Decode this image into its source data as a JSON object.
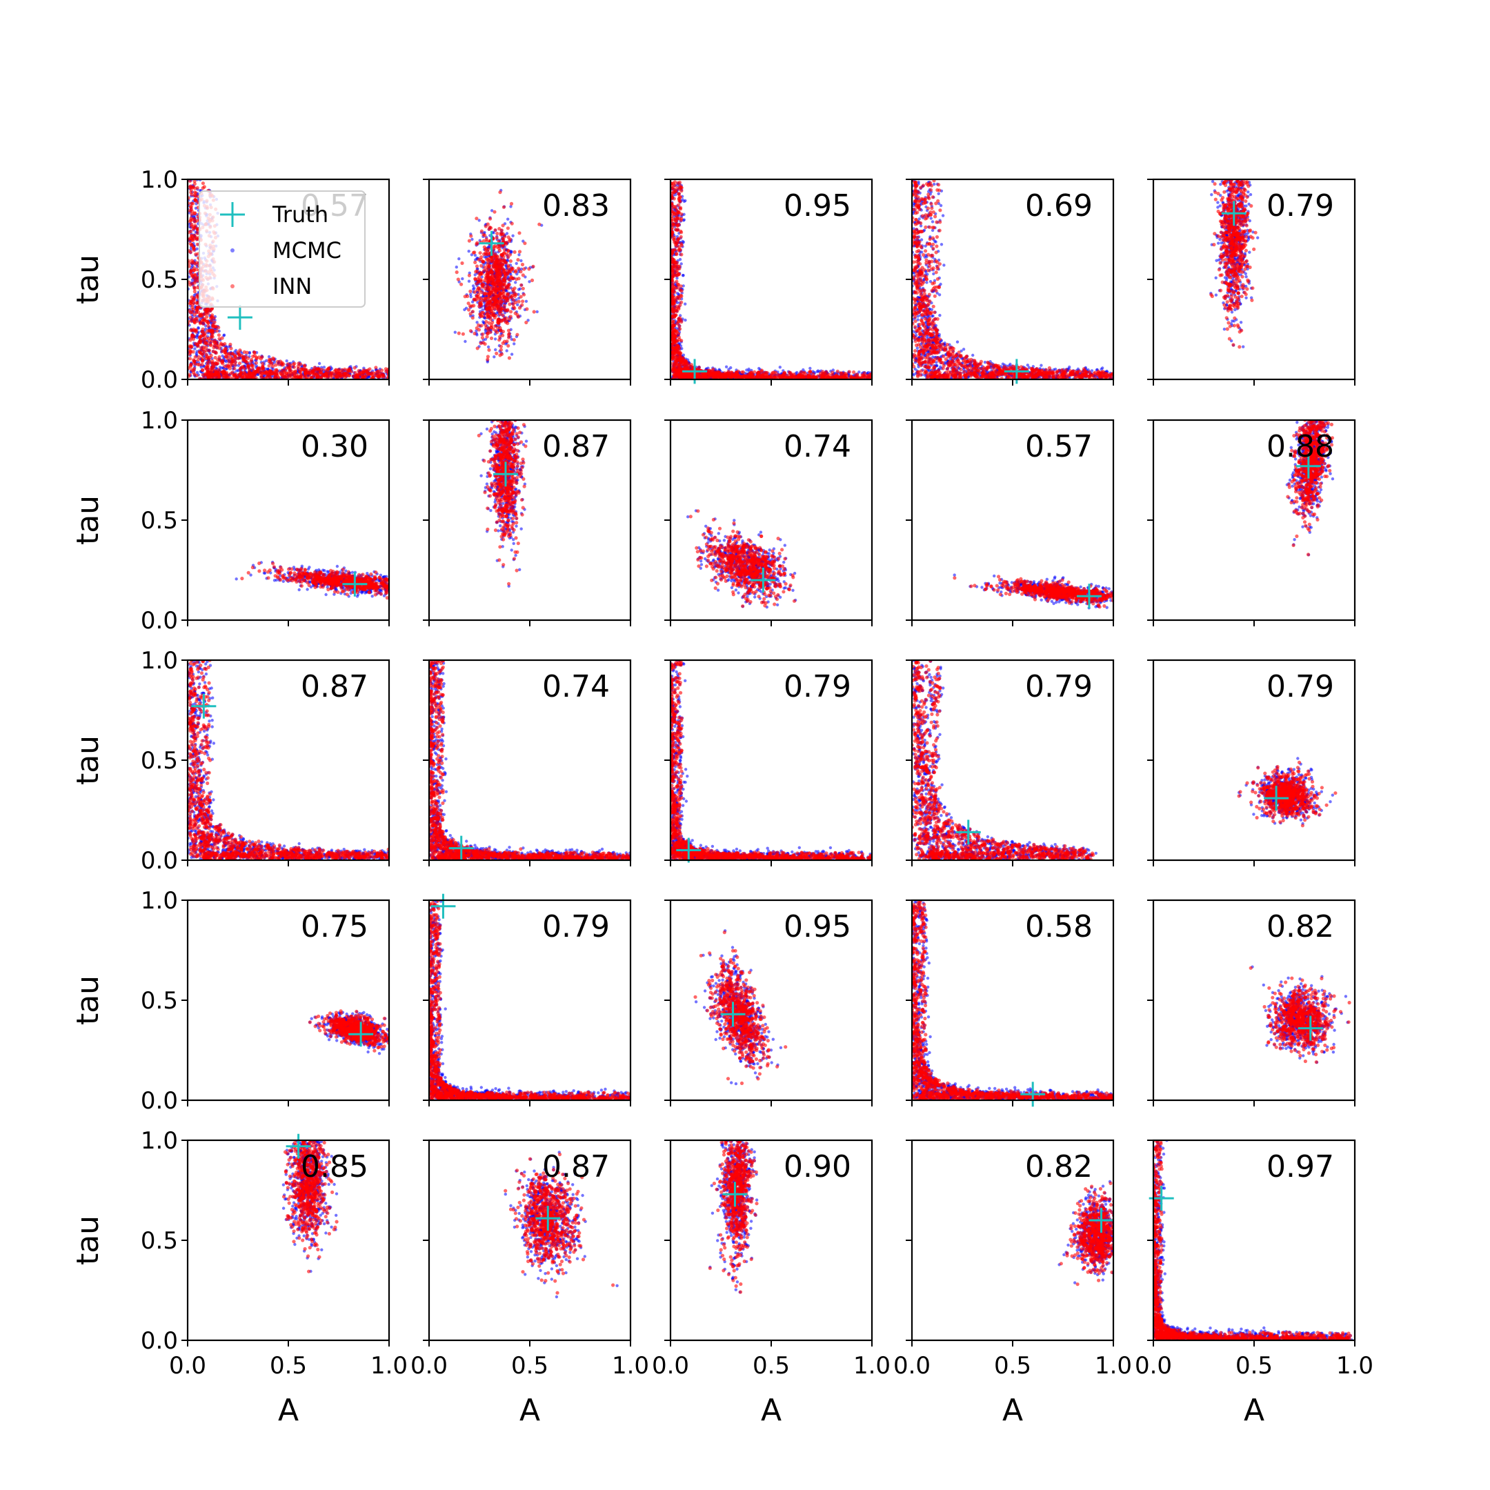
{
  "chart_data": {
    "type": "scatter",
    "title": "",
    "rows": 5,
    "cols": 5,
    "xlabel": "A",
    "ylabel": "tau",
    "xlim": [
      0.0,
      1.0
    ],
    "ylim": [
      0.0,
      1.0
    ],
    "xticks": [
      "0.0",
      "0.5",
      "1.0"
    ],
    "yticks": [
      "0.0",
      "0.5",
      "1.0"
    ],
    "legend": {
      "location": "top-left of first panel",
      "entries": [
        {
          "label": "Truth",
          "marker": "plus",
          "color": "#1fbfbf"
        },
        {
          "label": "MCMC",
          "marker": "dot",
          "color": "#0000ff"
        },
        {
          "label": "INN",
          "marker": "dot",
          "color": "#ff0000"
        }
      ]
    },
    "colors": {
      "truth": "#1fbfbf",
      "mcmc": "#0000ff",
      "inn": "#ff0000"
    },
    "panels": [
      {
        "overlap": "0.57",
        "truth": [
          0.26,
          0.31
        ],
        "shape": "curve",
        "A0": 0.1,
        "t0": 0.3,
        "amax": 1.0
      },
      {
        "overlap": "0.83",
        "truth": [
          0.31,
          0.68
        ],
        "shape": "blob",
        "cx": 0.33,
        "cy": 0.47,
        "sx": 0.06,
        "sy": 0.14,
        "rot": 0.0
      },
      {
        "overlap": "0.95",
        "truth": [
          0.12,
          0.04
        ],
        "shape": "curve",
        "A0": 0.04,
        "t0": 0.12,
        "amax": 1.0
      },
      {
        "overlap": "0.69",
        "truth": [
          0.52,
          0.04
        ],
        "shape": "curve",
        "A0": 0.1,
        "t0": 0.22,
        "amax": 1.0
      },
      {
        "overlap": "0.79",
        "truth": [
          0.4,
          0.83
        ],
        "shape": "blob",
        "cx": 0.4,
        "cy": 0.72,
        "sx": 0.035,
        "sy": 0.19,
        "rot": 0.0
      },
      {
        "overlap": "0.30",
        "truth": [
          0.83,
          0.18
        ],
        "shape": "blob",
        "cx": 0.8,
        "cy": 0.19,
        "sx": 0.16,
        "sy": 0.02,
        "rot": -0.12
      },
      {
        "overlap": "0.87",
        "truth": [
          0.38,
          0.73
        ],
        "shape": "blob",
        "cx": 0.38,
        "cy": 0.76,
        "sx": 0.035,
        "sy": 0.17,
        "rot": 0.0
      },
      {
        "overlap": "0.74",
        "truth": [
          0.46,
          0.2
        ],
        "shape": "blob",
        "cx": 0.38,
        "cy": 0.27,
        "sx": 0.1,
        "sy": 0.06,
        "rot": -0.5
      },
      {
        "overlap": "0.57",
        "truth": [
          0.88,
          0.12
        ],
        "shape": "blob",
        "cx": 0.74,
        "cy": 0.14,
        "sx": 0.15,
        "sy": 0.018,
        "rot": -0.1
      },
      {
        "overlap": "0.88",
        "truth": [
          0.77,
          0.77
        ],
        "shape": "blob",
        "cx": 0.78,
        "cy": 0.8,
        "sx": 0.035,
        "sy": 0.13,
        "rot": -0.1
      },
      {
        "overlap": "0.87",
        "truth": [
          0.08,
          0.77
        ],
        "shape": "curve",
        "A0": 0.08,
        "t0": 0.25,
        "amax": 1.0
      },
      {
        "overlap": "0.74",
        "truth": [
          0.16,
          0.06
        ],
        "shape": "curve",
        "A0": 0.05,
        "t0": 0.15,
        "amax": 1.0
      },
      {
        "overlap": "0.79",
        "truth": [
          0.09,
          0.05
        ],
        "shape": "curve",
        "A0": 0.04,
        "t0": 0.12,
        "amax": 1.0
      },
      {
        "overlap": "0.79",
        "truth": [
          0.28,
          0.14
        ],
        "shape": "curve",
        "A0": 0.1,
        "t0": 0.3,
        "amax": 0.9
      },
      {
        "overlap": "0.79",
        "truth": [
          0.61,
          0.31
        ],
        "shape": "blob",
        "cx": 0.66,
        "cy": 0.32,
        "sx": 0.06,
        "sy": 0.05,
        "rot": -0.3
      },
      {
        "overlap": "0.75",
        "truth": [
          0.86,
          0.33
        ],
        "shape": "blob",
        "cx": 0.84,
        "cy": 0.35,
        "sx": 0.07,
        "sy": 0.03,
        "rot": -0.25
      },
      {
        "overlap": "0.79",
        "truth": [
          0.07,
          0.97
        ],
        "shape": "curve",
        "A0": 0.04,
        "t0": 0.12,
        "amax": 1.0
      },
      {
        "overlap": "0.95",
        "truth": [
          0.31,
          0.43
        ],
        "shape": "blob",
        "cx": 0.34,
        "cy": 0.42,
        "sx": 0.05,
        "sy": 0.12,
        "rot": 0.35
      },
      {
        "overlap": "0.58",
        "truth": [
          0.6,
          0.03
        ],
        "shape": "curve",
        "A0": 0.05,
        "t0": 0.18,
        "amax": 1.0
      },
      {
        "overlap": "0.82",
        "truth": [
          0.78,
          0.36
        ],
        "shape": "blob",
        "cx": 0.73,
        "cy": 0.4,
        "sx": 0.07,
        "sy": 0.07,
        "rot": 0.0
      },
      {
        "overlap": "0.85",
        "truth": [
          0.55,
          0.97
        ],
        "shape": "blob",
        "cx": 0.6,
        "cy": 0.78,
        "sx": 0.045,
        "sy": 0.13,
        "rot": 0.0
      },
      {
        "overlap": "0.87",
        "truth": [
          0.59,
          0.61
        ],
        "shape": "blob",
        "cx": 0.59,
        "cy": 0.6,
        "sx": 0.07,
        "sy": 0.11,
        "rot": 0.0
      },
      {
        "overlap": "0.90",
        "truth": [
          0.32,
          0.73
        ],
        "shape": "blob",
        "cx": 0.33,
        "cy": 0.75,
        "sx": 0.035,
        "sy": 0.16,
        "rot": 0.0
      },
      {
        "overlap": "0.82",
        "truth": [
          0.94,
          0.6
        ],
        "shape": "blob",
        "cx": 0.92,
        "cy": 0.53,
        "sx": 0.05,
        "sy": 0.08,
        "rot": 0.0
      },
      {
        "overlap": "0.97",
        "truth": [
          0.04,
          0.71
        ],
        "shape": "curve",
        "A0": 0.03,
        "t0": 0.1,
        "amax": 1.0
      }
    ]
  }
}
